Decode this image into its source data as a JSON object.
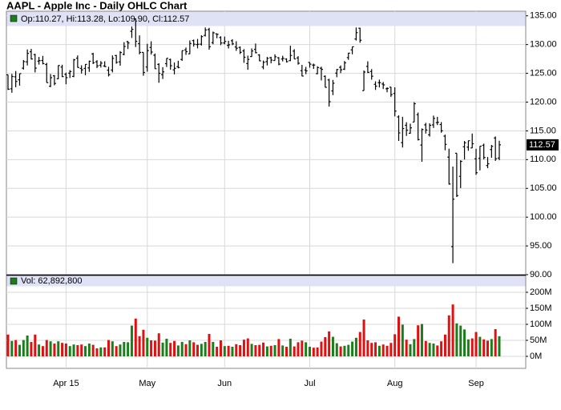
{
  "chart_data": {
    "type": "ohlc",
    "title": "AAPL - Apple Inc - Daily OHLC Chart",
    "ohlc_legend": "Op:110.27, Hi:113.28, Lo:109.90, Cl:112.57",
    "volume_legend": "Vol: 62,892,800",
    "categories": [
      null,
      null,
      null,
      null,
      null,
      null,
      null,
      null,
      null,
      null,
      null,
      null,
      null,
      null,
      null,
      "Apr 15",
      null,
      null,
      null,
      null,
      null,
      null,
      null,
      null,
      null,
      null,
      null,
      null,
      null,
      null,
      null,
      null,
      null,
      null,
      null,
      null,
      "May",
      null,
      null,
      null,
      null,
      null,
      null,
      null,
      null,
      null,
      null,
      null,
      null,
      null,
      null,
      null,
      null,
      null,
      null,
      null,
      "Jun",
      null,
      null,
      null,
      null,
      null,
      null,
      null,
      null,
      null,
      null,
      null,
      null,
      null,
      null,
      null,
      null,
      null,
      null,
      null,
      null,
      null,
      "Jul",
      null,
      null,
      null,
      null,
      null,
      null,
      null,
      null,
      null,
      null,
      null,
      null,
      null,
      null,
      null,
      null,
      null,
      null,
      null,
      null,
      null,
      "Aug",
      null,
      null,
      null,
      null,
      null,
      null,
      null,
      null,
      null,
      null,
      null,
      null,
      null,
      null,
      null,
      null,
      null,
      null,
      null,
      null,
      "Sep",
      null,
      null,
      null,
      null,
      null,
      null
    ],
    "open": [
      124.75,
      122.31,
      124.4,
      123.88,
      125.9,
      127.0,
      128.75,
      128.25,
      127.12,
      127.23,
      126.54,
      122.76,
      124.57,
      124.05,
      126.09,
      124.82,
      125.03,
      124.47,
      127.64,
      125.85,
      125.85,
      125.95,
      128.37,
      127.0,
      126.41,
      126.28,
      125.55,
      125.57,
      128.1,
      126.99,
      128.3,
      130.49,
      132.31,
      134.46,
      130.16,
      128.64,
      126.1,
      129.5,
      128.15,
      126.56,
      124.77,
      126.68,
      127.39,
      125.6,
      126.15,
      127.41,
      129.07,
      128.38,
      130.69,
      130.0,
      130.07,
      131.6,
      132.6,
      130.34,
      131.86,
      131.23,
      130.28,
      129.86,
      130.66,
      129.58,
      129.5,
      128.9,
      126.7,
      127.92,
      129.18,
      128.19,
      126.1,
      127.03,
      127.72,
      127.23,
      127.71,
      127.49,
      127.48,
      127.21,
      128.86,
      127.67,
      125.46,
      125.57,
      126.9,
      126.43,
      124.94,
      125.89,
      124.48,
      123.85,
      121.94,
      125.03,
      126.04,
      125.72,
      127.74,
      129.08,
      130.97,
      132.85,
      121.99,
      126.2,
      125.32,
      123.09,
      123.38,
      123.15,
      122.32,
      122.6,
      121.5,
      117.42,
      112.95,
      115.97,
      114.58,
      116.53,
      117.81,
      112.53,
      116.04,
      114.32,
      116.04,
      116.43,
      116.1,
      114.08,
      110.43,
      94.87,
      111.11,
      107.09,
      112.23,
      112.17,
      112.03,
      110.15,
      110.23,
      112.49,
      108.97,
      111.75,
      113.76,
      110.27
    ],
    "high": [
      124.77,
      124.9,
      125.4,
      124.95,
      127.32,
      129.16,
      129.25,
      128.4,
      127.85,
      128.04,
      126.82,
      124.88,
      124.7,
      126.4,
      126.49,
      125.12,
      125.56,
      127.51,
      128.12,
      126.4,
      126.58,
      127.21,
      128.57,
      127.29,
      127.13,
      127.1,
      126.14,
      128.12,
      128.2,
      128.87,
      130.42,
      130.63,
      133.13,
      134.54,
      131.59,
      128.64,
      130.13,
      130.57,
      128.45,
      126.75,
      126.08,
      127.62,
      127.56,
      126.88,
      127.19,
      128.95,
      129.49,
      130.72,
      130.88,
      130.98,
      131.63,
      132.97,
      132.91,
      132.26,
      131.95,
      131.45,
      131.39,
      130.66,
      130.94,
      130.58,
      129.69,
      129.21,
      128.08,
      129.34,
      130.18,
      128.33,
      127.24,
      127.85,
      127.88,
      128.31,
      127.82,
      128.06,
      127.61,
      129.8,
      129.2,
      127.99,
      126.47,
      126.12,
      126.94,
      126.69,
      126.23,
      126.15,
      124.64,
      124.06,
      123.85,
      125.76,
      126.37,
      127.15,
      128.57,
      129.62,
      132.97,
      132.92,
      125.5,
      127.09,
      125.74,
      123.61,
      123.91,
      123.5,
      122.57,
      122.64,
      122.57,
      117.7,
      117.44,
      116.5,
      116.25,
      119.99,
      118.18,
      115.42,
      116.4,
      116.31,
      117.65,
      117.44,
      116.52,
      114.35,
      111.9,
      108.8,
      111.11,
      109.89,
      113.24,
      113.31,
      114.53,
      111.88,
      112.34,
      112.78,
      110.45,
      112.56,
      114.02,
      113.28
    ],
    "low": [
      122.11,
      121.63,
      122.58,
      122.87,
      125.65,
      126.37,
      127.4,
      125.16,
      126.52,
      126.56,
      123.38,
      122.6,
      122.91,
      124.0,
      124.36,
      123.1,
      124.19,
      124.33,
      125.98,
      124.97,
      124.66,
      125.26,
      126.61,
      125.91,
      126.01,
      126.11,
      124.46,
      125.17,
      126.67,
      126.32,
      128.14,
      129.23,
      131.15,
      129.57,
      128.3,
      124.58,
      125.3,
      128.26,
      125.78,
      123.36,
      124.02,
      126.11,
      125.63,
      124.82,
      125.87,
      127.16,
      128.21,
      128.36,
      129.64,
      129.34,
      129.83,
      131.4,
      129.12,
      130.05,
      131.1,
      129.9,
      130.05,
      129.32,
      129.9,
      128.91,
      128.36,
      126.83,
      125.62,
      127.85,
      128.48,
      127.11,
      125.71,
      126.37,
      126.74,
      127.22,
      126.4,
      127.08,
      126.88,
      127.12,
      127.5,
      126.51,
      124.48,
      124.86,
      125.99,
      125.77,
      124.85,
      123.77,
      122.54,
      119.22,
      121.21,
      124.32,
      125.04,
      125.58,
      127.35,
      128.31,
      130.7,
      130.32,
      121.99,
      125.06,
      123.9,
      122.12,
      122.55,
      122.27,
      121.71,
      120.91,
      117.52,
      113.25,
      112.1,
      114.12,
      114.5,
      116.53,
      113.33,
      109.63,
      114.54,
      114.01,
      115.5,
      116.01,
      114.68,
      111.63,
      105.65,
      92.0,
      103.5,
      105.05,
      110.02,
      111.54,
      112.0,
      107.36,
      108.13,
      110.04,
      108.51,
      110.32,
      109.77,
      109.9
    ],
    "close": [
      122.24,
      124.45,
      123.59,
      124.95,
      127.04,
      128.47,
      127.5,
      125.9,
      127.21,
      126.69,
      123.38,
      124.24,
      123.25,
      126.37,
      124.43,
      124.25,
      125.32,
      127.35,
      126.01,
      125.6,
      126.56,
      127.1,
      126.85,
      126.3,
      126.78,
      126.17,
      124.75,
      127.6,
      126.91,
      128.62,
      129.67,
      130.28,
      132.65,
      130.56,
      128.64,
      125.15,
      128.95,
      128.7,
      125.8,
      125.01,
      125.26,
      127.62,
      126.32,
      125.87,
      126.01,
      128.95,
      128.77,
      130.19,
      130.07,
      130.06,
      131.39,
      132.54,
      129.62,
      132.04,
      131.78,
      130.28,
      130.54,
      129.96,
      130.12,
      129.36,
      128.65,
      127.8,
      127.42,
      128.88,
      128.59,
      127.17,
      126.92,
      127.6,
      127.3,
      127.88,
      126.6,
      127.61,
      127.03,
      128.11,
      127.5,
      126.75,
      124.53,
      125.43,
      126.6,
      126.44,
      126.0,
      125.69,
      122.57,
      120.07,
      123.28,
      125.66,
      125.61,
      126.82,
      128.51,
      129.62,
      132.07,
      130.75,
      125.22,
      125.16,
      124.5,
      122.77,
      123.38,
      122.99,
      122.37,
      121.3,
      118.44,
      114.64,
      115.4,
      115.13,
      115.52,
      119.72,
      113.49,
      115.24,
      115.15,
      115.96,
      117.16,
      116.5,
      115.01,
      112.65,
      105.76,
      103.12,
      103.74,
      109.69,
      112.92,
      113.29,
      112.76,
      107.72,
      112.34,
      110.37,
      109.27,
      112.31,
      110.15,
      112.57
    ],
    "volume": [
      68000000,
      48000000,
      51000000,
      36000000,
      51000000,
      65000000,
      45000000,
      68000000,
      37000000,
      32000000,
      51000000,
      47000000,
      40000000,
      47000000,
      42000000,
      40000000,
      32000000,
      37000000,
      35000000,
      37000000,
      32000000,
      40000000,
      36000000,
      25000000,
      28000000,
      28000000,
      51000000,
      47000000,
      32000000,
      37000000,
      45000000,
      44000000,
      96000000,
      118000000,
      63000000,
      83000000,
      58000000,
      50000000,
      49000000,
      72000000,
      43000000,
      55000000,
      42000000,
      48000000,
      34000000,
      45000000,
      38000000,
      50000000,
      44000000,
      36000000,
      39000000,
      45000000,
      70000000,
      45000000,
      30000000,
      50000000,
      32000000,
      33000000,
      30000000,
      38000000,
      35000000,
      52000000,
      56000000,
      39000000,
      35000000,
      36000000,
      43000000,
      31000000,
      33000000,
      35000000,
      54000000,
      34000000,
      30000000,
      55000000,
      31000000,
      44000000,
      49000000,
      44000000,
      30000000,
      27000000,
      28000000,
      46000000,
      60000000,
      78000000,
      61000000,
      41000000,
      31000000,
      33000000,
      36000000,
      46000000,
      58000000,
      76000000,
      115000000,
      50000000,
      42000000,
      44000000,
      33000000,
      37000000,
      33000000,
      42000000,
      69000000,
      124000000,
      99000000,
      52000000,
      38000000,
      54000000,
      97000000,
      101000000,
      48000000,
      42000000,
      40000000,
      34000000,
      47000000,
      68000000,
      128000000,
      162000000,
      103000000,
      96000000,
      84000000,
      53000000,
      56000000,
      76000000,
      61000000,
      53000000,
      49000000,
      54000000,
      85000000,
      62892800
    ],
    "ylim": [
      90,
      135.8
    ],
    "yticks": [
      {
        "value": 90,
        "label": "90.00"
      },
      {
        "value": 95,
        "label": "95.00"
      },
      {
        "value": 100,
        "label": "100.00"
      },
      {
        "value": 105,
        "label": "105.00"
      },
      {
        "value": 110,
        "label": "110.00"
      },
      {
        "value": 115,
        "label": "115.00"
      },
      {
        "value": 120,
        "label": "120.00"
      },
      {
        "value": 125,
        "label": "125.00"
      },
      {
        "value": 130,
        "label": "130.00"
      },
      {
        "value": 135,
        "label": "135.00"
      }
    ],
    "volume_ylim": [
      0,
      220000000
    ],
    "volume_yticks": [
      {
        "value": 0,
        "label": "0M"
      },
      {
        "value": 50000000,
        "label": "50M"
      },
      {
        "value": 100000000,
        "label": "100M"
      },
      {
        "value": 150000000,
        "label": "150M"
      },
      {
        "value": 200000000,
        "label": "200M"
      }
    ],
    "bar_color": "#000000",
    "up_color": "#1a7f1a",
    "down_color": "#e01010",
    "legend_color": "#1a7f1a",
    "header_color": "#dfe1f5",
    "grid": true
  }
}
